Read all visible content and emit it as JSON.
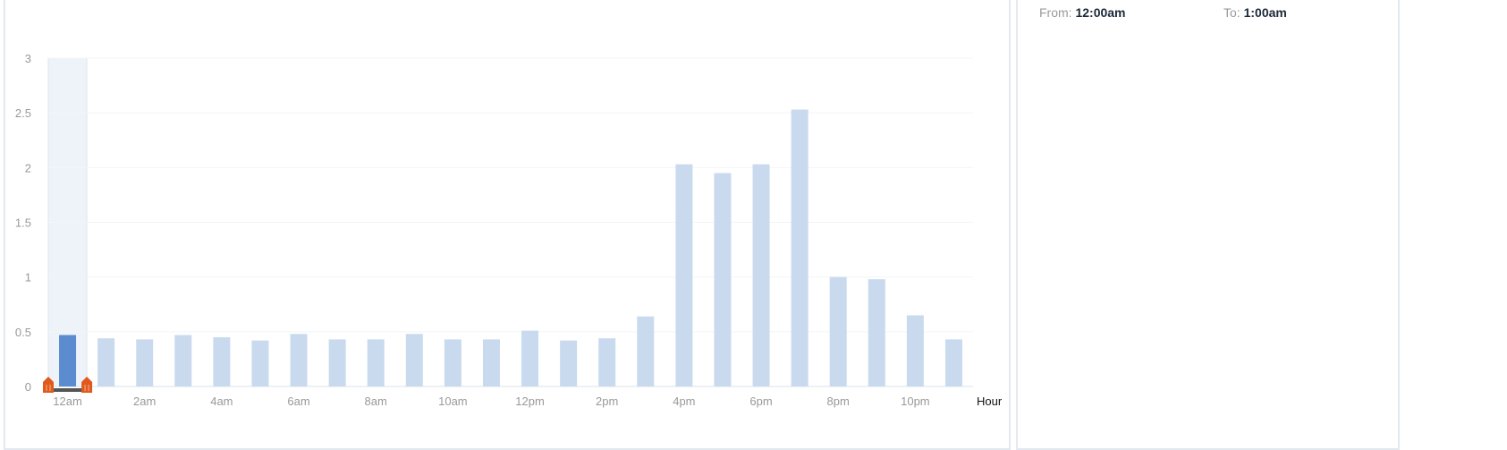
{
  "range": {
    "from_label": "From:",
    "from_value": "12:00am",
    "to_label": "To:",
    "to_value": "1:00am"
  },
  "colors": {
    "bar": "#c9daef",
    "selected_bar": "#5b8ccf",
    "selection_band": "#eef3fa",
    "handle": "#e05a1e"
  },
  "chart_data": {
    "type": "bar",
    "xlabel": "Hour",
    "ylabel": "",
    "ylim": [
      0,
      3
    ],
    "yticks": [
      "0",
      "0.5",
      "1",
      "1.5",
      "2",
      "2.5",
      "3"
    ],
    "categories": [
      "12am",
      "1am",
      "2am",
      "3am",
      "4am",
      "5am",
      "6am",
      "7am",
      "8am",
      "9am",
      "10am",
      "11am",
      "12pm",
      "1pm",
      "2pm",
      "3pm",
      "4pm",
      "5pm",
      "6pm",
      "7pm",
      "8pm",
      "9pm",
      "10pm",
      "11pm"
    ],
    "xtick_labels": [
      "12am",
      "2am",
      "4am",
      "6am",
      "8am",
      "10am",
      "12pm",
      "2pm",
      "4pm",
      "6pm",
      "8pm",
      "10pm"
    ],
    "values": [
      0.47,
      0.44,
      0.43,
      0.47,
      0.45,
      0.42,
      0.48,
      0.43,
      0.43,
      0.48,
      0.43,
      0.43,
      0.51,
      0.42,
      0.44,
      0.64,
      2.03,
      1.95,
      2.03,
      2.53,
      1.0,
      0.98,
      0.65,
      0.43
    ],
    "selected": "12am",
    "grid": true,
    "legend": "none"
  }
}
